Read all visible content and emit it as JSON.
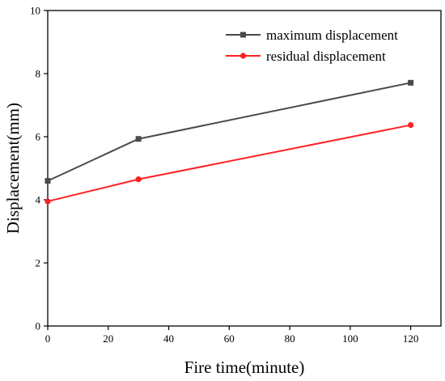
{
  "chart_data": {
    "type": "line",
    "title": "",
    "xlabel": "Fire time(minute)",
    "ylabel": "Displacement(mm)",
    "xlim": [
      0,
      130
    ],
    "ylim": [
      0,
      10
    ],
    "x_ticks": [
      0,
      20,
      40,
      60,
      80,
      100,
      120
    ],
    "y_ticks": [
      0,
      2,
      4,
      6,
      8,
      10
    ],
    "grid": false,
    "legend_position": "top-right",
    "series": [
      {
        "name": "maximum displacement",
        "color": "#4a4a4a",
        "marker": "square",
        "x": [
          0,
          30,
          120
        ],
        "y": [
          4.6,
          5.93,
          7.71
        ]
      },
      {
        "name": "residual displacement",
        "color": "#ff2020",
        "marker": "circle",
        "x": [
          0,
          30,
          120
        ],
        "y": [
          3.95,
          4.65,
          6.37
        ]
      }
    ]
  }
}
